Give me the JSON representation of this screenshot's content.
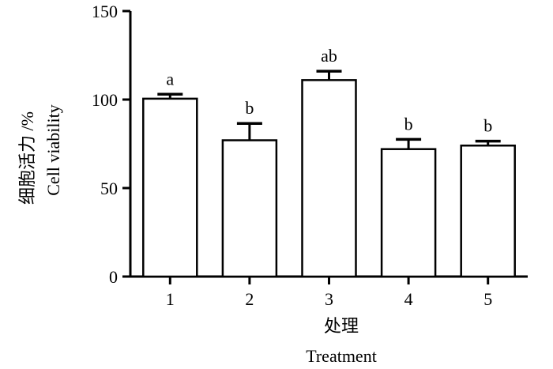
{
  "chart_data": {
    "type": "bar",
    "categories": [
      "1",
      "2",
      "3",
      "4",
      "5"
    ],
    "values": [
      100.5,
      77,
      111,
      72,
      74
    ],
    "errors": [
      2.5,
      9.5,
      5,
      5.5,
      2.5
    ],
    "significance": [
      "a",
      "b",
      "ab",
      "b",
      "b"
    ],
    "ylim": [
      0,
      150
    ],
    "yticks": [
      0,
      50,
      100,
      150
    ],
    "ylabel_cn": "细胞活力 /%",
    "ylabel_en": "Cell viability",
    "xlabel_cn": "处理",
    "xlabel_en": "Treatment",
    "grid": false,
    "colors": {
      "bar_fill": "#ffffff",
      "stroke": "#000000"
    }
  }
}
